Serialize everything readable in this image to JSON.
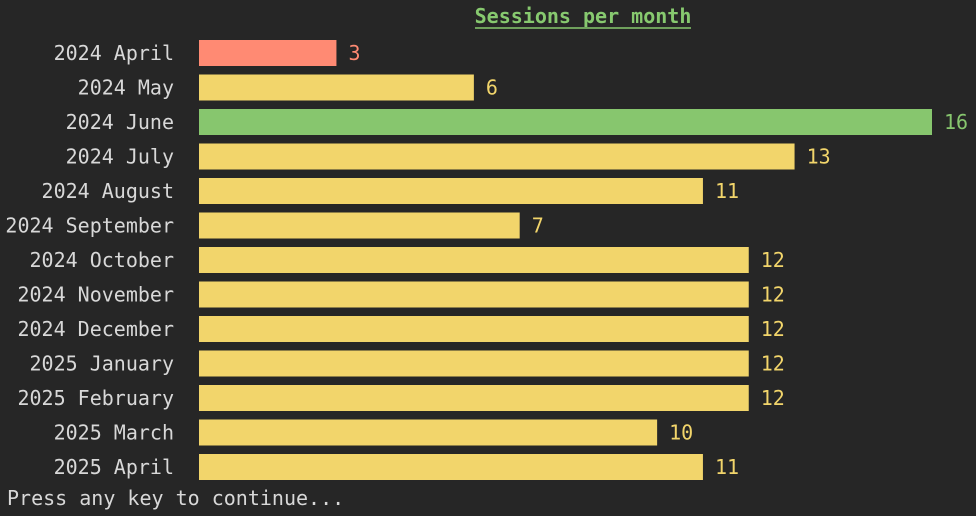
{
  "chart_data": {
    "type": "bar",
    "orientation": "horizontal",
    "title": "Sessions per month",
    "categories": [
      "2024 April",
      "2024 May",
      "2024 June",
      "2024 July",
      "2024 August",
      "2024 September",
      "2024 October",
      "2024 November",
      "2024 December",
      "2025 January",
      "2025 February",
      "2025 March",
      "2025 April"
    ],
    "values": [
      3,
      6,
      16,
      13,
      11,
      7,
      12,
      12,
      12,
      12,
      12,
      10,
      11
    ],
    "xlim": [
      0,
      16
    ],
    "grid": false,
    "colors": {
      "background": "#262626",
      "title": "#87c96f",
      "label": "#d8d8d8",
      "min_bar": "#ff8a73",
      "max_bar": "#87c66e",
      "default_bar": "#f2d56b"
    }
  },
  "footer": {
    "prompt": "Press any key to continue..."
  }
}
